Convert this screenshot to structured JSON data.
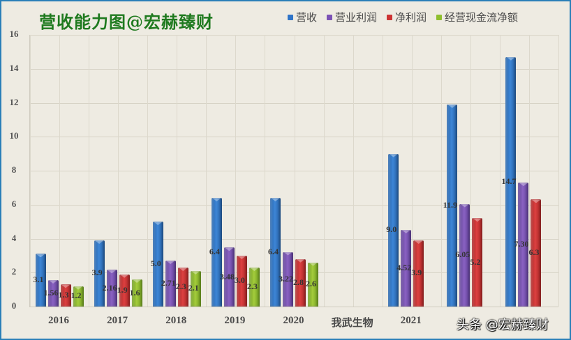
{
  "title": "营收能力图@宏赫臻财",
  "legend": [
    {
      "label": "营收",
      "color": "#2f74c8"
    },
    {
      "label": "营业利润",
      "color": "#7b52b5"
    },
    {
      "label": "净利润",
      "color": "#cc3333"
    },
    {
      "label": "经营现金流净额",
      "color": "#8fbf2e"
    }
  ],
  "watermark": "头条 @宏赫臻财",
  "chart_data": {
    "type": "bar",
    "title": "营收能力图@宏赫臻财",
    "xlabel": "",
    "ylabel": "",
    "ylim": [
      0,
      16
    ],
    "yticks": [
      0,
      2,
      4,
      6,
      8,
      10,
      12,
      14,
      16
    ],
    "grid": true,
    "legend_position": "top-right",
    "categories": [
      "2016",
      "2017",
      "2018",
      "2019",
      "2020",
      "我武生物",
      "2021",
      "",
      ""
    ],
    "series": [
      {
        "name": "营收",
        "values": [
          3.1,
          3.9,
          5.0,
          6.4,
          6.4,
          null,
          9.0,
          11.9,
          14.7
        ],
        "labels": [
          "3.1",
          "3.9",
          "5.0",
          "6.4",
          "6.4",
          "",
          "9.0",
          "11.9",
          "14.7"
        ]
      },
      {
        "name": "营业利润",
        "values": [
          1.56,
          2.16,
          2.71,
          3.48,
          3.22,
          null,
          4.52,
          6.05,
          7.3
        ],
        "labels": [
          "1.56",
          "2.16",
          "2.71",
          "3.48",
          "3.22",
          "",
          "4.52",
          "6.05",
          "7.30"
        ]
      },
      {
        "name": "净利润",
        "values": [
          1.3,
          1.9,
          2.3,
          3.0,
          2.8,
          null,
          3.9,
          5.2,
          6.3
        ],
        "labels": [
          "1.3",
          "1.9",
          "2.3",
          "3.0",
          "2.8",
          "",
          "3.9",
          "5.2",
          "6.3"
        ]
      },
      {
        "name": "经营现金流净额",
        "values": [
          1.2,
          1.6,
          2.1,
          2.3,
          2.6,
          null,
          null,
          null,
          null
        ],
        "labels": [
          "1.2",
          "1.6",
          "2.1",
          "2.3",
          "2.6",
          "",
          "",
          "",
          ""
        ]
      }
    ]
  }
}
